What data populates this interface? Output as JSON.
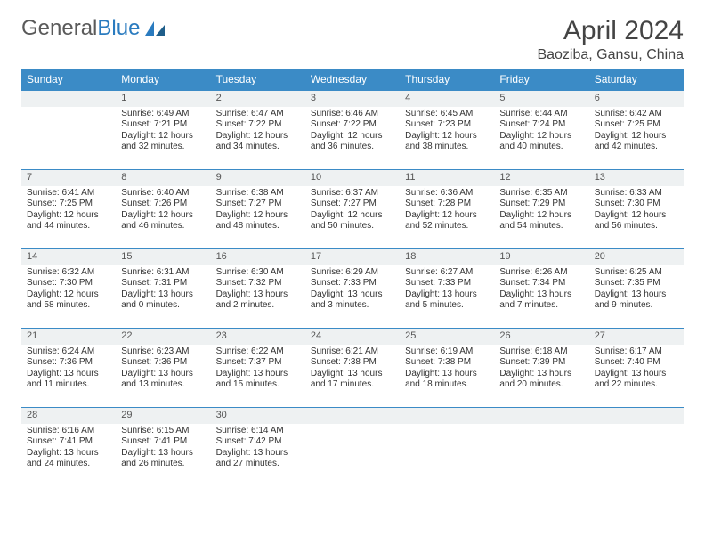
{
  "logo": {
    "word1": "General",
    "word2": "Blue"
  },
  "title": "April 2024",
  "location": "Baoziba, Gansu, China",
  "colors": {
    "header_bg": "#3b8bc6",
    "header_text": "#ffffff",
    "daynum_bg": "#eef1f2",
    "border": "#3b8bc6",
    "logo_gray": "#5a5a5a",
    "logo_blue": "#2a7bbf"
  },
  "weekdays": [
    "Sunday",
    "Monday",
    "Tuesday",
    "Wednesday",
    "Thursday",
    "Friday",
    "Saturday"
  ],
  "weeks": [
    [
      {
        "n": "",
        "lines": []
      },
      {
        "n": "1",
        "lines": [
          "Sunrise: 6:49 AM",
          "Sunset: 7:21 PM",
          "Daylight: 12 hours",
          "and 32 minutes."
        ]
      },
      {
        "n": "2",
        "lines": [
          "Sunrise: 6:47 AM",
          "Sunset: 7:22 PM",
          "Daylight: 12 hours",
          "and 34 minutes."
        ]
      },
      {
        "n": "3",
        "lines": [
          "Sunrise: 6:46 AM",
          "Sunset: 7:22 PM",
          "Daylight: 12 hours",
          "and 36 minutes."
        ]
      },
      {
        "n": "4",
        "lines": [
          "Sunrise: 6:45 AM",
          "Sunset: 7:23 PM",
          "Daylight: 12 hours",
          "and 38 minutes."
        ]
      },
      {
        "n": "5",
        "lines": [
          "Sunrise: 6:44 AM",
          "Sunset: 7:24 PM",
          "Daylight: 12 hours",
          "and 40 minutes."
        ]
      },
      {
        "n": "6",
        "lines": [
          "Sunrise: 6:42 AM",
          "Sunset: 7:25 PM",
          "Daylight: 12 hours",
          "and 42 minutes."
        ]
      }
    ],
    [
      {
        "n": "7",
        "lines": [
          "Sunrise: 6:41 AM",
          "Sunset: 7:25 PM",
          "Daylight: 12 hours",
          "and 44 minutes."
        ]
      },
      {
        "n": "8",
        "lines": [
          "Sunrise: 6:40 AM",
          "Sunset: 7:26 PM",
          "Daylight: 12 hours",
          "and 46 minutes."
        ]
      },
      {
        "n": "9",
        "lines": [
          "Sunrise: 6:38 AM",
          "Sunset: 7:27 PM",
          "Daylight: 12 hours",
          "and 48 minutes."
        ]
      },
      {
        "n": "10",
        "lines": [
          "Sunrise: 6:37 AM",
          "Sunset: 7:27 PM",
          "Daylight: 12 hours",
          "and 50 minutes."
        ]
      },
      {
        "n": "11",
        "lines": [
          "Sunrise: 6:36 AM",
          "Sunset: 7:28 PM",
          "Daylight: 12 hours",
          "and 52 minutes."
        ]
      },
      {
        "n": "12",
        "lines": [
          "Sunrise: 6:35 AM",
          "Sunset: 7:29 PM",
          "Daylight: 12 hours",
          "and 54 minutes."
        ]
      },
      {
        "n": "13",
        "lines": [
          "Sunrise: 6:33 AM",
          "Sunset: 7:30 PM",
          "Daylight: 12 hours",
          "and 56 minutes."
        ]
      }
    ],
    [
      {
        "n": "14",
        "lines": [
          "Sunrise: 6:32 AM",
          "Sunset: 7:30 PM",
          "Daylight: 12 hours",
          "and 58 minutes."
        ]
      },
      {
        "n": "15",
        "lines": [
          "Sunrise: 6:31 AM",
          "Sunset: 7:31 PM",
          "Daylight: 13 hours",
          "and 0 minutes."
        ]
      },
      {
        "n": "16",
        "lines": [
          "Sunrise: 6:30 AM",
          "Sunset: 7:32 PM",
          "Daylight: 13 hours",
          "and 2 minutes."
        ]
      },
      {
        "n": "17",
        "lines": [
          "Sunrise: 6:29 AM",
          "Sunset: 7:33 PM",
          "Daylight: 13 hours",
          "and 3 minutes."
        ]
      },
      {
        "n": "18",
        "lines": [
          "Sunrise: 6:27 AM",
          "Sunset: 7:33 PM",
          "Daylight: 13 hours",
          "and 5 minutes."
        ]
      },
      {
        "n": "19",
        "lines": [
          "Sunrise: 6:26 AM",
          "Sunset: 7:34 PM",
          "Daylight: 13 hours",
          "and 7 minutes."
        ]
      },
      {
        "n": "20",
        "lines": [
          "Sunrise: 6:25 AM",
          "Sunset: 7:35 PM",
          "Daylight: 13 hours",
          "and 9 minutes."
        ]
      }
    ],
    [
      {
        "n": "21",
        "lines": [
          "Sunrise: 6:24 AM",
          "Sunset: 7:36 PM",
          "Daylight: 13 hours",
          "and 11 minutes."
        ]
      },
      {
        "n": "22",
        "lines": [
          "Sunrise: 6:23 AM",
          "Sunset: 7:36 PM",
          "Daylight: 13 hours",
          "and 13 minutes."
        ]
      },
      {
        "n": "23",
        "lines": [
          "Sunrise: 6:22 AM",
          "Sunset: 7:37 PM",
          "Daylight: 13 hours",
          "and 15 minutes."
        ]
      },
      {
        "n": "24",
        "lines": [
          "Sunrise: 6:21 AM",
          "Sunset: 7:38 PM",
          "Daylight: 13 hours",
          "and 17 minutes."
        ]
      },
      {
        "n": "25",
        "lines": [
          "Sunrise: 6:19 AM",
          "Sunset: 7:38 PM",
          "Daylight: 13 hours",
          "and 18 minutes."
        ]
      },
      {
        "n": "26",
        "lines": [
          "Sunrise: 6:18 AM",
          "Sunset: 7:39 PM",
          "Daylight: 13 hours",
          "and 20 minutes."
        ]
      },
      {
        "n": "27",
        "lines": [
          "Sunrise: 6:17 AM",
          "Sunset: 7:40 PM",
          "Daylight: 13 hours",
          "and 22 minutes."
        ]
      }
    ],
    [
      {
        "n": "28",
        "lines": [
          "Sunrise: 6:16 AM",
          "Sunset: 7:41 PM",
          "Daylight: 13 hours",
          "and 24 minutes."
        ]
      },
      {
        "n": "29",
        "lines": [
          "Sunrise: 6:15 AM",
          "Sunset: 7:41 PM",
          "Daylight: 13 hours",
          "and 26 minutes."
        ]
      },
      {
        "n": "30",
        "lines": [
          "Sunrise: 6:14 AM",
          "Sunset: 7:42 PM",
          "Daylight: 13 hours",
          "and 27 minutes."
        ]
      },
      {
        "n": "",
        "lines": []
      },
      {
        "n": "",
        "lines": []
      },
      {
        "n": "",
        "lines": []
      },
      {
        "n": "",
        "lines": []
      }
    ]
  ]
}
